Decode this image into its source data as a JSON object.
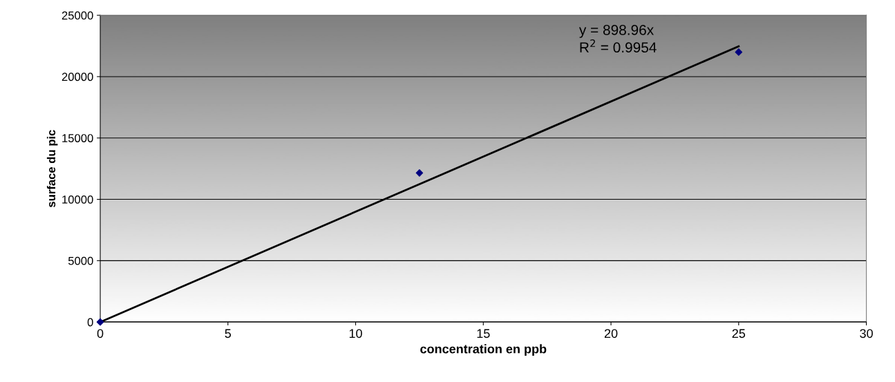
{
  "chart_data": {
    "type": "scatter",
    "xlabel": "concentration en ppb",
    "ylabel": "surface du pic",
    "series": [
      {
        "color": "#000080",
        "marker": "diamond",
        "x": [
          0,
          12.5,
          25
        ],
        "values": [
          0,
          12150,
          22000
        ]
      },
      {
        "type": "line",
        "marker": "none",
        "color": "#000000",
        "x": [
          0,
          25
        ],
        "values": [
          0,
          22470
        ]
      }
    ],
    "annotations": [
      "y = 898.96x\nR$^{2}$ = 0.9954"
    ],
    "xlim": [
      0,
      30
    ],
    "xticks": [
      0,
      5,
      10,
      15,
      20,
      25,
      30
    ],
    "ylim": [
      0,
      25000
    ],
    "yticks": [
      0,
      5000,
      10000,
      15000,
      20000,
      25000
    ],
    "grid": "y",
    "legend": false
  }
}
